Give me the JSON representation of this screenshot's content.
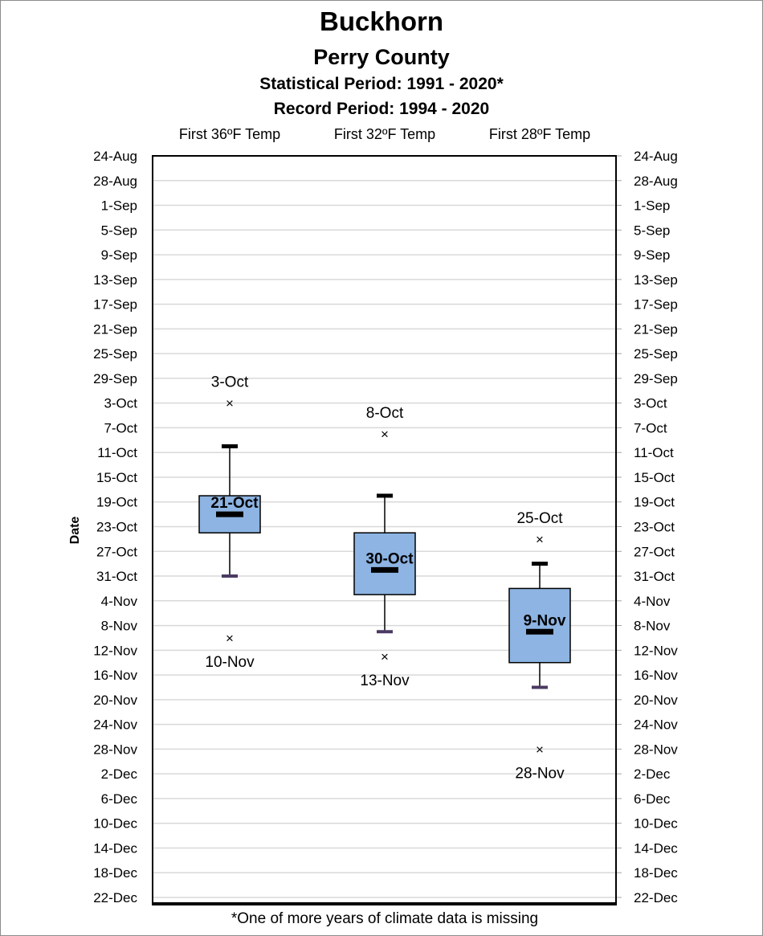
{
  "chart_data": {
    "type": "box",
    "title": "Buckhorn",
    "subtitles": [
      "Perry County",
      "Statistical Period: 1991 - 2020*",
      "Record Period: 1994 - 2020"
    ],
    "ylabel": "Date",
    "y_axis_ticks": [
      "24-Aug",
      "28-Aug",
      "1-Sep",
      "5-Sep",
      "9-Sep",
      "13-Sep",
      "17-Sep",
      "21-Sep",
      "25-Sep",
      "29-Sep",
      "3-Oct",
      "7-Oct",
      "11-Oct",
      "15-Oct",
      "19-Oct",
      "23-Oct",
      "27-Oct",
      "31-Oct",
      "4-Nov",
      "8-Nov",
      "12-Nov",
      "16-Nov",
      "20-Nov",
      "24-Nov",
      "28-Nov",
      "2-Dec",
      "6-Dec",
      "10-Dec",
      "14-Dec",
      "18-Dec",
      "22-Dec"
    ],
    "y_axis_range": [
      "24-Aug",
      "22-Dec"
    ],
    "grid": true,
    "series": [
      {
        "name": "First 36ºF Temp",
        "earliest": {
          "value": "3-Oct",
          "label": "3-Oct"
        },
        "latest": {
          "value": "10-Nov",
          "label": "10-Nov"
        },
        "whisker_low": "10-Oct",
        "q1": "18-Oct",
        "median": {
          "value": "21-Oct",
          "label": "21-Oct"
        },
        "q3": "24-Oct",
        "whisker_high": "31-Oct"
      },
      {
        "name": "First 32ºF Temp",
        "earliest": {
          "value": "8-Oct",
          "label": "8-Oct"
        },
        "latest": {
          "value": "13-Nov",
          "label": "13-Nov"
        },
        "whisker_low": "18-Oct",
        "q1": "24-Oct",
        "median": {
          "value": "30-Oct",
          "label": "30-Oct"
        },
        "q3": "3-Nov",
        "whisker_high": "9-Nov"
      },
      {
        "name": "First 28ºF Temp",
        "earliest": {
          "value": "25-Oct",
          "label": "25-Oct"
        },
        "latest": {
          "value": "28-Nov",
          "label": "28-Nov"
        },
        "whisker_low": "29-Oct",
        "q1": "2-Nov",
        "median": {
          "value": "9-Nov",
          "label": "9-Nov"
        },
        "q3": "14-Nov",
        "whisker_high": "18-Nov"
      }
    ],
    "box_color": "#8db4e2",
    "footnote": "*One of more years of climate data is missing"
  }
}
